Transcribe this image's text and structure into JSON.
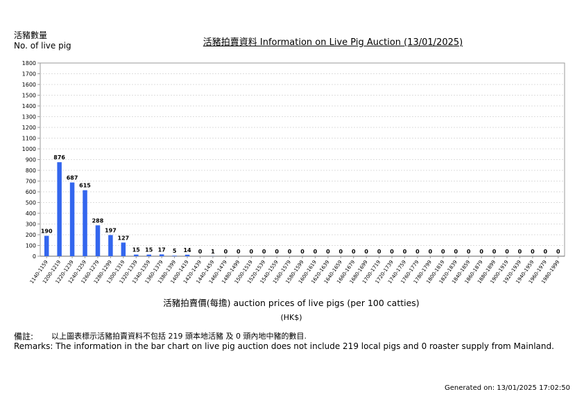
{
  "header": {
    "ylabel_zh": "活豬數量",
    "ylabel_en": "No. of live pig",
    "title": "活豬拍賣資料 Information on Live Pig Auction (13/01/2025)"
  },
  "axis": {
    "xtitle": "活豬拍賣價(每擔) auction prices of live pigs (per 100 catties)",
    "unit": "(HK$)"
  },
  "remarks": {
    "label_zh": "備註:",
    "text_zh": "以上圖表標示活豬拍賣資料不包括 219 頭本地活豬 及 0 頭內地中豬的數目.",
    "text_en": "Remarks: The information in the bar chart on live pig auction does not include 219 local pigs and 0 roaster supply from Mainland."
  },
  "footer": {
    "generated": "Generated on: 13/01/2025 17:02:50"
  },
  "colors": {
    "bar": "#3366ee",
    "grid": "#dddddd",
    "axis": "#999999"
  },
  "chart_data": {
    "type": "bar",
    "categories": [
      "1140-1159",
      "1200-1219",
      "1220-1239",
      "1240-1259",
      "1260-1279",
      "1280-1299",
      "1300-1319",
      "1320-1339",
      "1340-1359",
      "1360-1379",
      "1380-1399",
      "1400-1419",
      "1420-1439",
      "1440-1459",
      "1460-1479",
      "1480-1499",
      "1500-1519",
      "1520-1539",
      "1540-1559",
      "1560-1579",
      "1580-1599",
      "1600-1619",
      "1620-1639",
      "1640-1659",
      "1660-1679",
      "1680-1699",
      "1700-1719",
      "1720-1739",
      "1740-1759",
      "1760-1779",
      "1780-1799",
      "1800-1819",
      "1820-1839",
      "1840-1859",
      "1860-1879",
      "1880-1899",
      "1900-1919",
      "1920-1939",
      "1940-1959",
      "1960-1979",
      "1980-1999"
    ],
    "values": [
      190,
      876,
      687,
      615,
      288,
      197,
      127,
      15,
      15,
      17,
      5,
      14,
      0,
      1,
      0,
      0,
      0,
      0,
      0,
      0,
      0,
      0,
      0,
      0,
      0,
      0,
      0,
      0,
      0,
      0,
      0,
      0,
      0,
      0,
      0,
      0,
      0,
      0,
      0,
      0,
      0
    ],
    "yticks": [
      0,
      100,
      200,
      300,
      400,
      500,
      600,
      700,
      800,
      900,
      1000,
      1100,
      1200,
      1300,
      1400,
      1500,
      1600,
      1700,
      1800
    ],
    "ylim": [
      0,
      1800
    ],
    "grid": true,
    "data_labels": true
  }
}
